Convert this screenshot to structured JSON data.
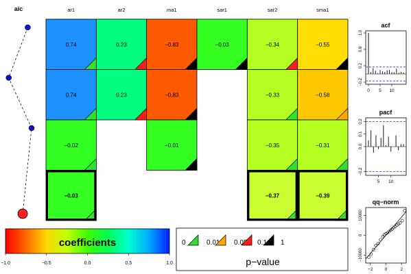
{
  "chart_data": [
    {
      "type": "line",
      "title": "aic",
      "points": [
        {
          "row": 1,
          "aic_rank": 0.85,
          "best": false
        },
        {
          "row": 2,
          "aic_rank": 0.1,
          "best": false
        },
        {
          "row": 3,
          "aic_rank": 1.0,
          "best": false
        },
        {
          "row": 4,
          "aic_rank": 0.65,
          "best": true
        }
      ],
      "colors": {
        "point": "#1010c8",
        "best": "#ff2020"
      }
    },
    {
      "type": "heatmap",
      "title": "",
      "columns": [
        "ar1",
        "ar2",
        "ma1",
        "sar1",
        "sar2",
        "sma1"
      ],
      "rows": [
        [
          {
            "value": 0.74,
            "label": "0.74",
            "color": "#1e90ff",
            "pvalue_color": "#33dd33"
          },
          {
            "value": 0.23,
            "label": "0.23",
            "color": "#00ff7f",
            "pvalue_color": "#ff1a1a"
          },
          {
            "value": -0.83,
            "label": "−0.83",
            "color": "#ff5a00",
            "pvalue_color": "#000000"
          },
          {
            "value": -0.03,
            "label": "−0.03",
            "color": "#33ff22",
            "pvalue_color": "#000000"
          },
          {
            "value": -0.34,
            "label": "−0.34",
            "color": "#b3ff22",
            "pvalue_color": "#ff1a1a"
          },
          {
            "value": -0.55,
            "label": "−0.55",
            "color": "#ffdd00",
            "pvalue_color": "#000000"
          }
        ],
        [
          {
            "value": 0.74,
            "label": "0.74",
            "color": "#1e90ff",
            "pvalue_color": "#33dd33"
          },
          {
            "value": 0.23,
            "label": "0.23",
            "color": "#00ff7f",
            "pvalue_color": "#ff1a1a"
          },
          {
            "value": -0.83,
            "label": "−0.83",
            "color": "#ff5a00",
            "pvalue_color": "#000000"
          },
          null,
          {
            "value": -0.33,
            "label": "−0.33",
            "color": "#b3ff22",
            "pvalue_color": "#33dd33"
          },
          {
            "value": -0.58,
            "label": "−0.58",
            "color": "#ffc800",
            "pvalue_color": "#ffa500"
          }
        ],
        [
          {
            "value": -0.02,
            "label": "−0.02",
            "color": "#33ff22",
            "pvalue_color": "#33dd33"
          },
          null,
          {
            "value": -0.01,
            "label": "−0.01",
            "color": "#33ff22",
            "pvalue_color": "#000000"
          },
          null,
          {
            "value": -0.35,
            "label": "−0.35",
            "color": "#b3ff22",
            "pvalue_color": "#33dd33"
          },
          {
            "value": -0.31,
            "label": "−0.31",
            "color": "#b3ff22",
            "pvalue_color": "#33dd33"
          }
        ],
        [
          {
            "value": -0.03,
            "label": "−0.03",
            "color": "#33ff22",
            "pvalue_color": "#33dd33",
            "best": true
          },
          null,
          null,
          null,
          {
            "value": -0.37,
            "label": "−0.37",
            "color": "#c8ff30",
            "pvalue_color": "#33dd33",
            "best": true
          },
          {
            "value": -0.39,
            "label": "−0.39",
            "color": "#c8ff30",
            "pvalue_color": "#33dd33",
            "best": true
          }
        ]
      ]
    },
    {
      "type": "bar",
      "title": "acf",
      "x_ticks": [
        "0",
        "5",
        "10"
      ],
      "y_ticks": [
        "−0.2",
        "0.2",
        "0.6",
        "1.0"
      ],
      "ylim": [
        -0.25,
        1.05
      ],
      "conf_band": 0.17,
      "lags": [
        0,
        1,
        2,
        3,
        4,
        5,
        6,
        7,
        8,
        9,
        10,
        11,
        12,
        13,
        14,
        15
      ],
      "values": [
        1.0,
        0.05,
        0.14,
        0.08,
        0.02,
        0.1,
        0.06,
        0.05,
        0.09,
        0.1,
        0.05,
        0.04,
        0.13,
        0.03,
        0.05,
        0.04
      ]
    },
    {
      "type": "bar",
      "title": "pacf",
      "x_ticks": [
        "5",
        "10"
      ],
      "y_ticks": [
        "−0.2",
        "0.0",
        "0.1",
        "0.2"
      ],
      "ylim": [
        -0.23,
        0.23
      ],
      "conf_band": 0.2,
      "lags": [
        1,
        2,
        3,
        4,
        5,
        6,
        7,
        8,
        9,
        10,
        11,
        12,
        13,
        14,
        15
      ],
      "values": [
        0.05,
        0.13,
        -0.05,
        0.09,
        -0.02,
        0.07,
        0.17,
        0.01,
        0.08,
        -0.04,
        0.0,
        0.09,
        -0.03,
        0.02,
        0.02
      ]
    },
    {
      "type": "scatter",
      "title": "qq−norm",
      "x_ticks": [
        "−2",
        "0",
        "2"
      ],
      "y_ticks": [
        "−10000",
        "0",
        "10000"
      ],
      "xlim": [
        -2.6,
        2.6
      ],
      "ylim": [
        -14000,
        14000
      ],
      "points": [
        {
          "x": -2.2,
          "y": -11000
        },
        {
          "x": -1.9,
          "y": -9500
        },
        {
          "x": -1.6,
          "y": -7200
        },
        {
          "x": -1.3,
          "y": -5200
        },
        {
          "x": -1.0,
          "y": -4200
        },
        {
          "x": -0.7,
          "y": -2200
        },
        {
          "x": -0.4,
          "y": -600
        },
        {
          "x": -0.2,
          "y": 300
        },
        {
          "x": 0.0,
          "y": 800
        },
        {
          "x": 0.2,
          "y": 1300
        },
        {
          "x": 0.4,
          "y": 1900
        },
        {
          "x": 0.6,
          "y": 2600
        },
        {
          "x": 0.8,
          "y": 3100
        },
        {
          "x": 1.0,
          "y": 3800
        },
        {
          "x": 1.2,
          "y": 4400
        },
        {
          "x": 1.4,
          "y": 5100
        },
        {
          "x": 1.6,
          "y": 5700
        },
        {
          "x": 1.8,
          "y": 6200
        },
        {
          "x": 2.1,
          "y": 7400
        },
        {
          "x": 2.4,
          "y": 12500
        }
      ],
      "line": {
        "intercept": 0,
        "slope": 4600
      }
    },
    {
      "type": "heatmap",
      "title": "coefficients",
      "x_ticks": [
        "−1.0",
        "−0.5",
        "0.0",
        "0.5",
        "1.0"
      ],
      "range": [
        -1.0,
        1.0
      ],
      "gradient": [
        "#ff0000",
        "#ff6a00",
        "#ffd500",
        "#c0ff00",
        "#40ff00",
        "#00ff55",
        "#00ffd0",
        "#00aaff",
        "#0022ff"
      ]
    },
    {
      "type": "table",
      "title": "p−value",
      "labels": [
        "0",
        "0.01",
        "0.05",
        "0.1",
        "1"
      ],
      "colors": [
        "#33dd33",
        "#ffa500",
        "#ff1a1a",
        "#000000"
      ]
    }
  ]
}
